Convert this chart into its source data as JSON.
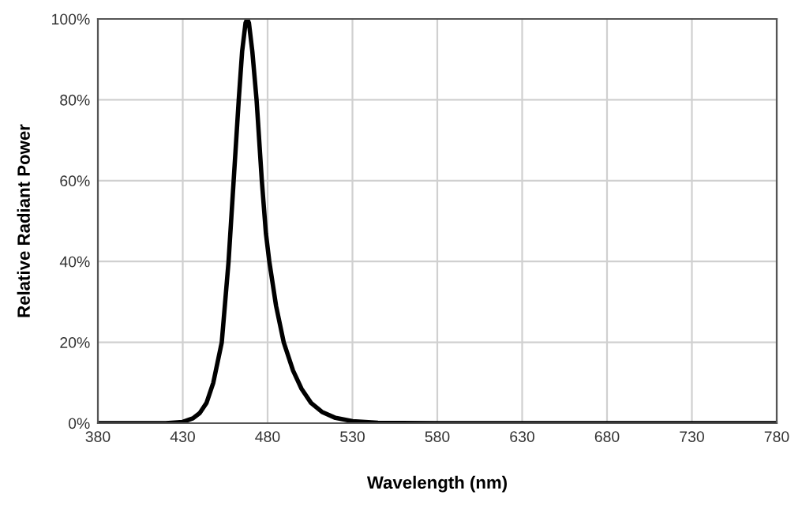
{
  "chart_data": {
    "type": "line",
    "xlabel": "Wavelength (nm)",
    "ylabel": "Relative Radiant Power",
    "series": [
      {
        "color": "#000000",
        "x": [
          380,
          420,
          430,
          436,
          440,
          444,
          448,
          453,
          457,
          460,
          463,
          465,
          467,
          468,
          469,
          471,
          473.5,
          476.6,
          479,
          481,
          485,
          489.5,
          495,
          500,
          505.6,
          512,
          520,
          530,
          545,
          580,
          680,
          780
        ],
        "values": [
          0,
          0,
          0.3,
          1.2,
          2.5,
          5,
          10,
          20,
          40,
          60,
          80,
          92,
          99,
          100,
          99,
          92,
          80,
          60,
          47,
          40,
          29,
          20,
          13,
          8.5,
          5,
          2.8,
          1.3,
          0.5,
          0.1,
          0,
          0,
          0
        ]
      }
    ],
    "xlim": [
      380,
      780
    ],
    "xticks": [
      380,
      430,
      480,
      530,
      580,
      630,
      680,
      730,
      780
    ],
    "ylim": [
      0,
      100
    ],
    "yticks": [
      {
        "value": 0,
        "label": "0%"
      },
      {
        "value": 20,
        "label": "20%"
      },
      {
        "value": 40,
        "label": "40%"
      },
      {
        "value": 60,
        "label": "60%"
      },
      {
        "value": 80,
        "label": "80%"
      },
      {
        "value": 100,
        "label": "100%"
      }
    ],
    "grid": true,
    "marker": "none",
    "line_style": "solid",
    "legend": false
  }
}
